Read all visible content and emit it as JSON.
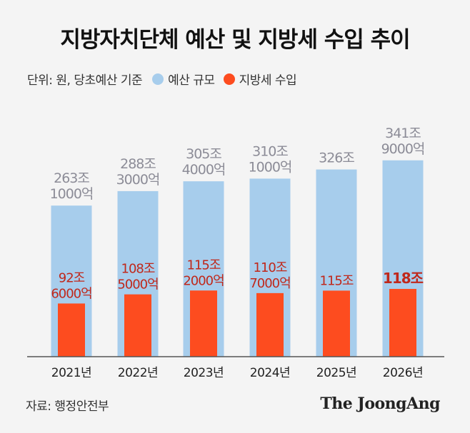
{
  "title": "지방자치단체 예산 및 지방세 수입 추이",
  "unit_note": "단위: 원, 당초예산 기준",
  "source": "자료: 행정안전부",
  "brand": "The JoongAng",
  "colors": {
    "budget": "#a7cdec",
    "tax": "#fd4c1f",
    "budget_label": "#8c8c97",
    "tax_label": "#c0281b",
    "axis": "#555555"
  },
  "chart_data": {
    "type": "bar",
    "categories": [
      "2021년",
      "2022년",
      "2023년",
      "2024년",
      "2025년",
      "2026년"
    ],
    "series": [
      {
        "name": "예산 규모",
        "values": [
          263.1,
          288.3,
          305.4,
          310.1,
          326.0,
          341.9
        ],
        "labels": [
          [
            "263조",
            "1000억"
          ],
          [
            "288조",
            "3000억"
          ],
          [
            "305조",
            "4000억"
          ],
          [
            "310조",
            "1000억"
          ],
          [
            "326조"
          ],
          [
            "341조",
            "9000억"
          ]
        ]
      },
      {
        "name": "지방세 수입",
        "values": [
          92.6,
          108.5,
          115.2,
          110.7,
          115.0,
          118.0
        ],
        "labels": [
          [
            "92조",
            "6000억"
          ],
          [
            "108조",
            "5000억"
          ],
          [
            "115조",
            "2000억"
          ],
          [
            "110조",
            "7000억"
          ],
          [
            "115조"
          ],
          [
            "118조"
          ]
        ]
      }
    ],
    "ylim": [
      0,
      400
    ],
    "grid": false,
    "legend": "top-left",
    "xlabel": "",
    "ylabel": ""
  }
}
